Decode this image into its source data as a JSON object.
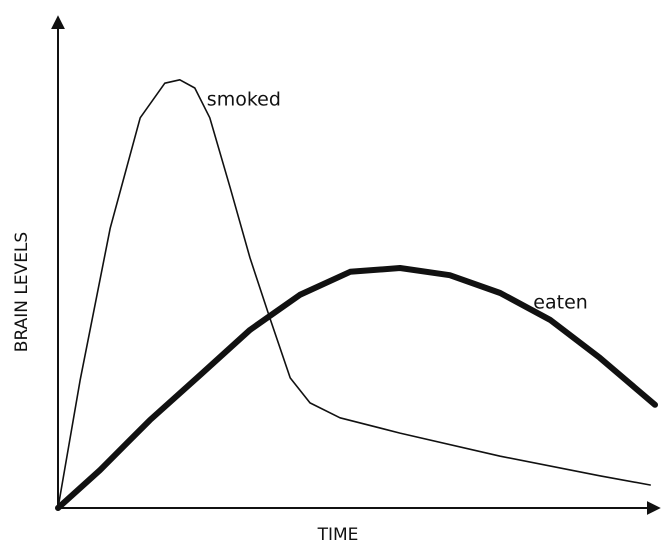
{
  "chart_data": {
    "type": "line",
    "x_label": "TIME",
    "y_label": "BRAIN LEVELS",
    "xlim": [
      0,
      100
    ],
    "ylim": [
      0,
      100
    ],
    "grid": false,
    "series": [
      {
        "name": "smoked",
        "color": "#111111",
        "x": [
          0,
          3.7,
          8.7,
          13.7,
          17.8,
          20.3,
          22.8,
          25.3,
          28.7,
          32,
          35.3,
          38.7,
          42,
          47,
          57,
          73.7,
          90.3,
          98.7
        ],
        "values": [
          0,
          26.7,
          58.3,
          81.3,
          88.5,
          89.2,
          87.5,
          81.3,
          66.7,
          52.1,
          39.6,
          27.1,
          21.9,
          18.8,
          15.6,
          10.8,
          6.7,
          4.8
        ]
      },
      {
        "name": "eaten",
        "color": "#111111",
        "x": [
          0,
          7,
          15.3,
          23.7,
          32,
          40.3,
          48.7,
          57,
          65.3,
          73.7,
          82,
          90.3,
          99.5
        ],
        "values": [
          0,
          7.9,
          18.3,
          27.7,
          37.1,
          44.4,
          49.2,
          50,
          48.5,
          44.8,
          39.2,
          31.3,
          21.5
        ]
      }
    ]
  }
}
